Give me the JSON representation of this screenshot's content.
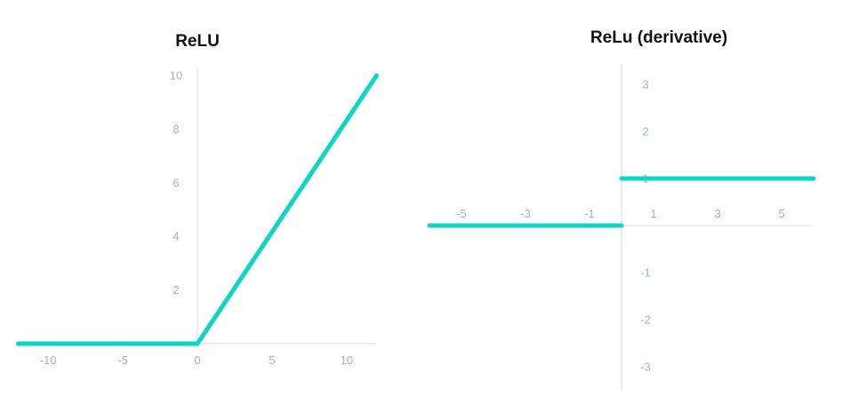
{
  "chart_data": [
    {
      "type": "line",
      "title": "ReLU",
      "xlabel": "",
      "ylabel": "",
      "xlim": [
        -12,
        12
      ],
      "ylim": [
        0,
        10
      ],
      "x_ticks": [
        -10,
        -5,
        0,
        5,
        10
      ],
      "y_ticks": [
        2,
        4,
        6,
        8,
        10
      ],
      "grid": false,
      "color": "#0fd6c3",
      "series": [
        {
          "x": [
            -12,
            0,
            12
          ],
          "y": [
            0,
            0,
            10
          ]
        }
      ]
    },
    {
      "type": "line",
      "title": "ReLu (derivative)",
      "xlabel": "",
      "ylabel": "",
      "xlim": [
        -6,
        6
      ],
      "ylim": [
        -3,
        3
      ],
      "x_ticks": [
        -5,
        -3,
        -1,
        1,
        3,
        5
      ],
      "y_ticks": [
        -3,
        -2,
        -1,
        1,
        2,
        3
      ],
      "grid": false,
      "color": "#0fd6c3",
      "series": [
        {
          "x": [
            -6,
            0
          ],
          "y": [
            0,
            0
          ]
        },
        {
          "x": [
            0,
            6
          ],
          "y": [
            1,
            1
          ]
        }
      ]
    }
  ]
}
